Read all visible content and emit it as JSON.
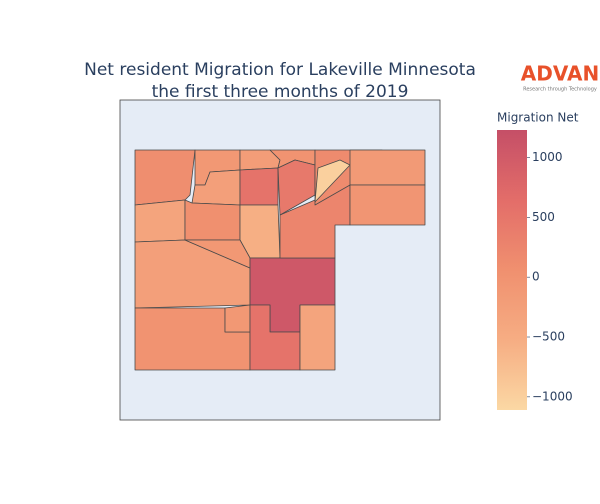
{
  "chart_data": {
    "type": "choropleth",
    "title": [
      "Net resident Migration for Lakeville Minnesota",
      "the first three months of 2019"
    ],
    "logo": {
      "text": "ADVAN",
      "tagline": "Research through Technology"
    },
    "colorbar_title": "Migration Net",
    "values": [
      100,
      -350,
      -100,
      -250,
      50,
      -200,
      550,
      -550,
      -250,
      -100,
      0,
      -100,
      1050,
      550,
      -350,
      250,
      0,
      450,
      150,
      -1000,
      -150,
      -50
    ],
    "zlim": [
      -1110,
      1230
    ],
    "zticks": [
      {
        "value": -1000,
        "label": "−1000"
      },
      {
        "value": -500,
        "label": "−500"
      },
      0,
      500,
      1000
    ],
    "colorscale": [
      "#fbd8a4",
      "#f6ad83",
      "#f0906f",
      "#e36d69",
      "#c54f67"
    ],
    "border_color": "#4a4a4a",
    "background": "#e5ecf6"
  }
}
